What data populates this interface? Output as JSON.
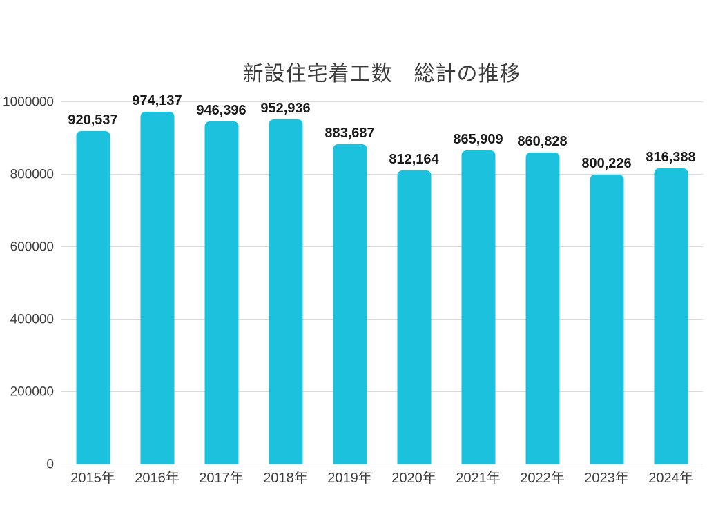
{
  "chart_data": {
    "type": "bar",
    "title": "新設住宅着工数　総計の推移",
    "categories": [
      "2015年",
      "2016年",
      "2017年",
      "2018年",
      "2019年",
      "2020年",
      "2021年",
      "2022年",
      "2023年",
      "2024年"
    ],
    "values": [
      920537,
      974137,
      946396,
      952936,
      883687,
      812164,
      865909,
      860828,
      800226,
      816388
    ],
    "value_labels": [
      "920,537",
      "974,137",
      "946,396",
      "952,936",
      "883,687",
      "812,164",
      "865,909",
      "860,828",
      "800,226",
      "816,388"
    ],
    "xlabel": "",
    "ylabel": "",
    "ylim": [
      0,
      1000000
    ],
    "y_ticks": [
      0,
      200000,
      400000,
      600000,
      800000,
      1000000
    ],
    "y_tick_labels": [
      "0",
      "200000",
      "400000",
      "600000",
      "800000",
      "1000000"
    ],
    "grid": "horizontal",
    "legend": "none",
    "colors": {
      "bar": "#1CC1DE",
      "gridline": "#D9D9D9",
      "value_label": "#1A1A1A",
      "axis_text": "#3D3D3D",
      "background": "#FFFFFF"
    }
  }
}
